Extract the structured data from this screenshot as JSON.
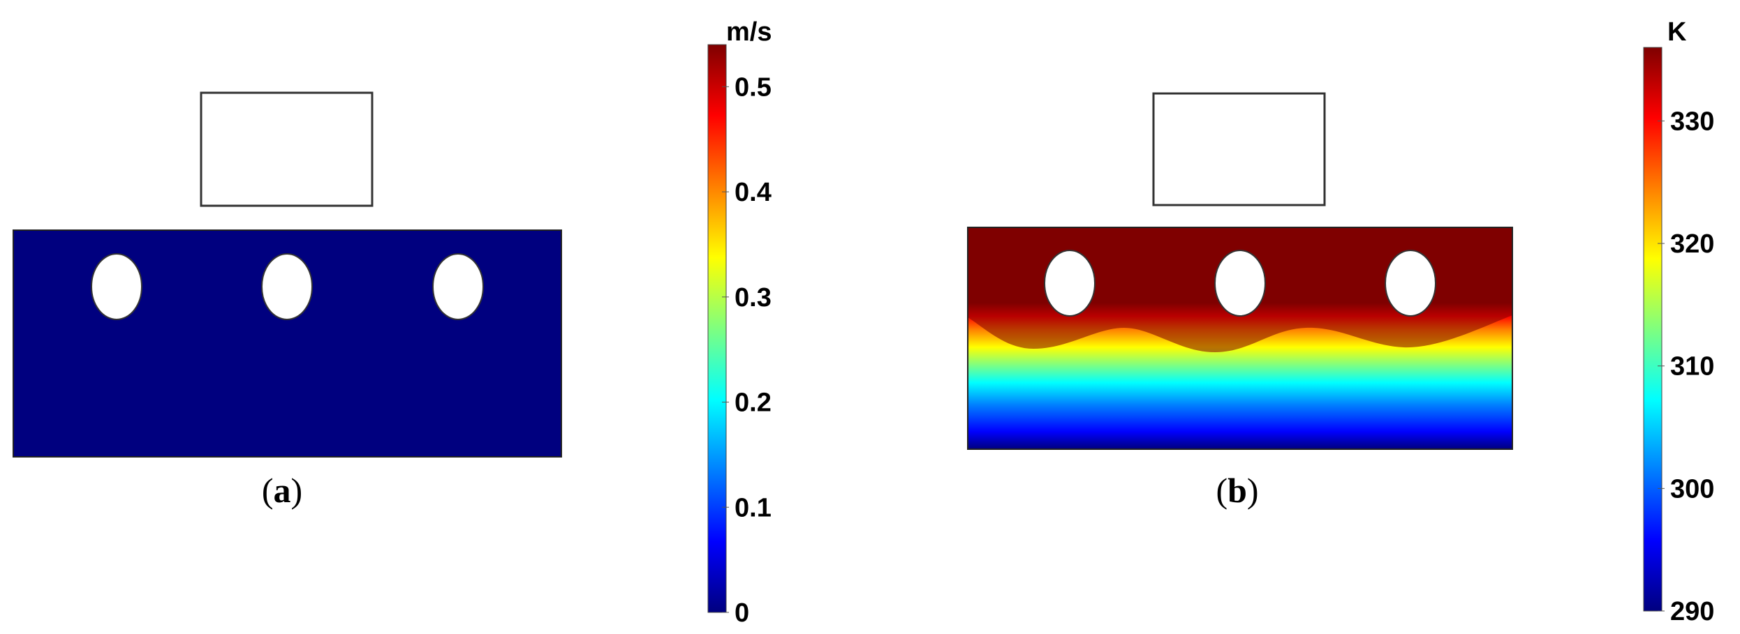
{
  "panels": [
    {
      "id": "a",
      "caption_open": "(",
      "caption_letter": "a",
      "caption_close": ")",
      "field": "uniform",
      "fill_color": "#00007F"
    },
    {
      "id": "b",
      "caption_open": "(",
      "caption_letter": "b",
      "caption_close": ")",
      "field": "gradient"
    }
  ],
  "colorbars": [
    {
      "id": "velocity",
      "unit": "m/s",
      "ticks": [
        "0.5",
        "0.4",
        "0.3",
        "0.2",
        "0.1",
        "0"
      ],
      "range": [
        0,
        0.54
      ]
    },
    {
      "id": "temperature",
      "unit": "K",
      "ticks": [
        "330",
        "320",
        "310",
        "300",
        "290"
      ],
      "range": [
        290,
        336
      ]
    }
  ],
  "colors": {
    "jet": [
      "#00007F",
      "#0000FF",
      "#007FFF",
      "#00FFFF",
      "#7FFF7F",
      "#FFFF00",
      "#FF7F00",
      "#FF0000",
      "#7F0000"
    ],
    "hot_region": "#7F0000",
    "cold_region": "#00007F",
    "outline": "#333333"
  }
}
